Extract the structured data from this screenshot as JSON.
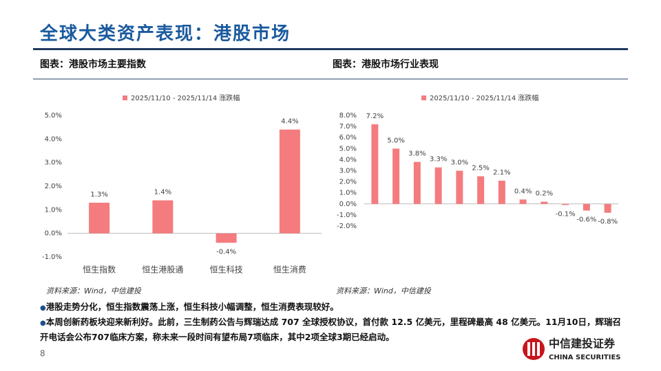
{
  "header": {
    "title": "全球大类资产表现：港股市场"
  },
  "chart_data": [
    {
      "type": "bar",
      "title": "图表：港股市场主要指数",
      "categories": [
        "恒生指数",
        "恒生港股通",
        "恒生科技",
        "恒生消费"
      ],
      "series": [
        {
          "name": "2025/11/10 - 2025/11/14 涨跌幅",
          "color": "#f47c7e",
          "values": [
            1.3,
            1.4,
            -0.4,
            4.4
          ],
          "value_labels": [
            "1.3%",
            "1.4%",
            "-0.4%",
            "4.4%"
          ]
        }
      ],
      "ylim": [
        -1,
        5
      ],
      "yticks": [
        {
          "value": -1,
          "label": "-1.0%"
        },
        {
          "value": 0,
          "label": "0.0%"
        },
        {
          "value": 1,
          "label": "1.0%"
        },
        {
          "value": 2,
          "label": "2.0%"
        },
        {
          "value": 3,
          "label": "3.0%"
        },
        {
          "value": 4,
          "label": "4.0%"
        },
        {
          "value": 5,
          "label": "5.0%"
        }
      ],
      "source": "资料来源：Wind，中信建投"
    },
    {
      "type": "bar",
      "title": "图表：港股市场行业表现",
      "categories": [
        null,
        null,
        null,
        null,
        null,
        null,
        null,
        null,
        null,
        null,
        null,
        null
      ],
      "series": [
        {
          "name": "2025/11/10 - 2025/11/14 涨跌幅",
          "color": "#f47c7e",
          "values": [
            7.2,
            5.0,
            3.8,
            3.3,
            3.0,
            2.5,
            2.1,
            0.4,
            0.2,
            -0.1,
            -0.6,
            -0.8
          ],
          "value_labels": [
            "7.2%",
            "5.0%",
            "3.8%",
            "3.3%",
            "3.0%",
            "2.5%",
            "2.1%",
            "0.4%",
            "0.2%",
            "-0.1%",
            "-0.6%",
            "-0.8%"
          ]
        }
      ],
      "ylim": [
        -2,
        8
      ],
      "yticks": [
        {
          "value": -2,
          "label": "-2.0%"
        },
        {
          "value": -1,
          "label": "-1.0%"
        },
        {
          "value": 0,
          "label": "0.0%"
        },
        {
          "value": 1,
          "label": "1.0%"
        },
        {
          "value": 2,
          "label": "2.0%"
        },
        {
          "value": 3,
          "label": "3.0%"
        },
        {
          "value": 4,
          "label": "4.0%"
        },
        {
          "value": 5,
          "label": "5.0%"
        },
        {
          "value": 6,
          "label": "6.0%"
        },
        {
          "value": 7,
          "label": "7.0%"
        },
        {
          "value": 8,
          "label": "8.0%"
        }
      ],
      "source": "资料来源：Wind，中信建投"
    }
  ],
  "bullets": [
    "港股走势分化，恒生指数震荡上涨，恒生科技小幅调整，恒生消费表现较好。",
    "本周创新药板块迎来新利好。此前，三生制药公告与辉瑞达成 707 全球授权协议，首付款 12.5 亿美元，里程碑最高 48 亿美元。11月10日，辉瑞召开电话会公布707临床方案，称未来一段时间有望布局7项临床，其中2项全球3期已经启动。"
  ],
  "page_number": "8",
  "logo": {
    "name": "中信建投证券",
    "english": "CHINA SECURITIES"
  }
}
